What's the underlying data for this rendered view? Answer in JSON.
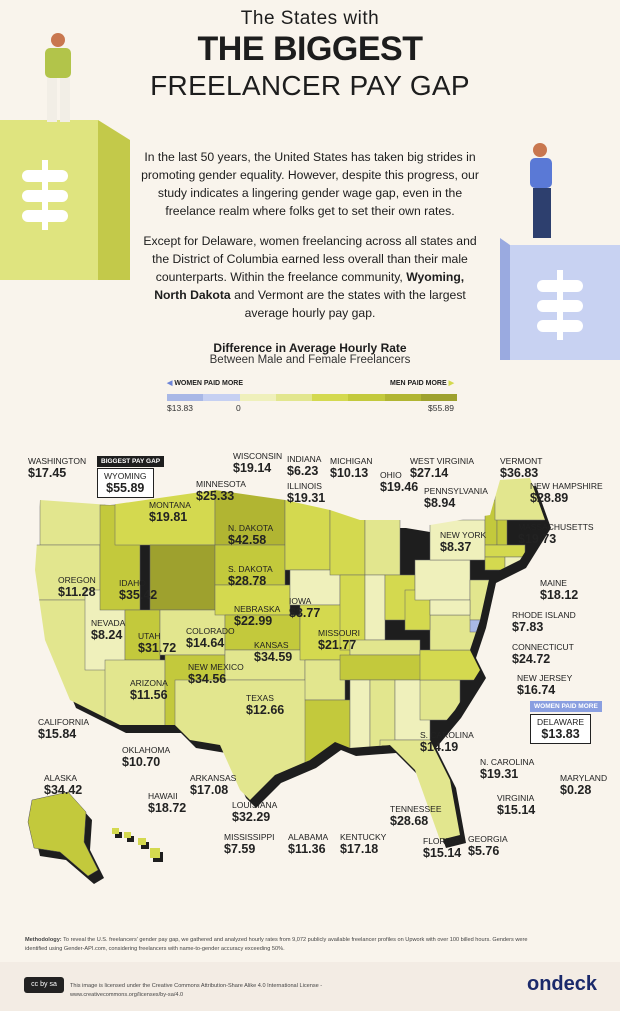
{
  "header": {
    "line1": "The States with",
    "line2": "THE BIGGEST",
    "line3": "FREELANCER PAY GAP"
  },
  "intro": {
    "p1": "In the last 50 years, the United States has taken big strides in promoting gender equality. However, despite this progress, our study indicates a lingering gender wage gap, even in the freelance realm where folks get to set their own rates.",
    "p2_before": "Except for Delaware, women freelancing across all states and the District of Columbia earned less overall than their male counterparts. Within the freelance community, ",
    "p2_bold": "Wyoming, North Dakota",
    "p2_after": " and Vermont are the states with the largest average hourly pay gap."
  },
  "legend": {
    "title": "Difference in Average Hourly Rate",
    "subtitle": "Between Male and Female Freelancers",
    "women_label": "WOMEN PAID MORE",
    "men_label": "MEN PAID MORE",
    "min": "$13.83",
    "zero": "0",
    "max": "$55.89",
    "women_colors": [
      "#a9b8e6",
      "#c6d0f2"
    ],
    "men_colors": [
      "#eff0bb",
      "#e2e68e",
      "#d4d94f",
      "#c3c93c",
      "#b1b532",
      "#9ea12e"
    ]
  },
  "badges": {
    "biggest": "BIGGEST PAY GAP",
    "women_more": "WOMEN PAID MORE"
  },
  "states": [
    {
      "name": "Washington",
      "value": "$17.45",
      "gap": 17.45
    },
    {
      "name": "Wyoming",
      "value": "$55.89",
      "gap": 55.89
    },
    {
      "name": "Minnesota",
      "value": "$25.33",
      "gap": 25.33
    },
    {
      "name": "Wisconsin",
      "value": "$19.14",
      "gap": 19.14
    },
    {
      "name": "Indiana",
      "value": "$6.23",
      "gap": 6.23
    },
    {
      "name": "Illinois",
      "value": "$19.31",
      "gap": 19.31
    },
    {
      "name": "Michigan",
      "value": "$10.13",
      "gap": 10.13
    },
    {
      "name": "Ohio",
      "value": "$19.46",
      "gap": 19.46
    },
    {
      "name": "West Virginia",
      "value": "$27.14",
      "gap": 27.14
    },
    {
      "name": "Pennsylvania",
      "value": "$8.94",
      "gap": 8.94
    },
    {
      "name": "Vermont",
      "value": "$36.83",
      "gap": 36.83
    },
    {
      "name": "New Hampshire",
      "value": "$28.89",
      "gap": 28.89
    },
    {
      "name": "Massachusetts",
      "value": "$19.73",
      "gap": 19.73
    },
    {
      "name": "New York",
      "value": "$8.37",
      "gap": 8.37
    },
    {
      "name": "Maine",
      "value": "$18.12",
      "gap": 18.12
    },
    {
      "name": "Rhode Island",
      "value": "$7.83",
      "gap": 7.83
    },
    {
      "name": "Connecticut",
      "value": "$24.72",
      "gap": 24.72
    },
    {
      "name": "New Jersey",
      "value": "$16.74",
      "gap": 16.74
    },
    {
      "name": "Delaware",
      "value": "$13.83",
      "gap": -13.83
    },
    {
      "name": "Maryland",
      "value": "$0.28",
      "gap": 0.28
    },
    {
      "name": "Virginia",
      "value": "$15.14",
      "gap": 15.14
    },
    {
      "name": "N. Carolina",
      "value": "$19.31",
      "gap": 19.31
    },
    {
      "name": "S. Carolina",
      "value": "$14.19",
      "gap": 14.19
    },
    {
      "name": "Georgia",
      "value": "$5.76",
      "gap": 5.76
    },
    {
      "name": "Florida",
      "value": "$15.14",
      "gap": 15.14
    },
    {
      "name": "Tennessee",
      "value": "$28.68",
      "gap": 28.68
    },
    {
      "name": "Kentucky",
      "value": "$17.18",
      "gap": 17.18
    },
    {
      "name": "Alabama",
      "value": "$11.36",
      "gap": 11.36
    },
    {
      "name": "Mississippi",
      "value": "$7.59",
      "gap": 7.59
    },
    {
      "name": "Louisiana",
      "value": "$32.29",
      "gap": 32.29
    },
    {
      "name": "Arkansas",
      "value": "$17.08",
      "gap": 17.08
    },
    {
      "name": "Oklahoma",
      "value": "$10.70",
      "gap": 10.7
    },
    {
      "name": "Hawaii",
      "value": "$18.72",
      "gap": 18.72
    },
    {
      "name": "Alaska",
      "value": "$34.42",
      "gap": 34.42
    },
    {
      "name": "California",
      "value": "$15.84",
      "gap": 15.84
    },
    {
      "name": "Texas",
      "value": "$12.66",
      "gap": 12.66
    },
    {
      "name": "Arizona",
      "value": "$11.56",
      "gap": 11.56
    },
    {
      "name": "New Mexico",
      "value": "$34.56",
      "gap": 34.56
    },
    {
      "name": "Utah",
      "value": "$31.72",
      "gap": 31.72
    },
    {
      "name": "Colorado",
      "value": "$14.64",
      "gap": 14.64
    },
    {
      "name": "Kansas",
      "value": "$34.59",
      "gap": 34.59
    },
    {
      "name": "Missouri",
      "value": "$21.77",
      "gap": 21.77
    },
    {
      "name": "Nevada",
      "value": "$8.24",
      "gap": 8.24
    },
    {
      "name": "Oregon",
      "value": "$11.28",
      "gap": 11.28
    },
    {
      "name": "Idaho",
      "value": "$35.42",
      "gap": 35.42
    },
    {
      "name": "Montana",
      "value": "$19.81",
      "gap": 19.81
    },
    {
      "name": "N. Dakota",
      "value": "$42.58",
      "gap": 42.58
    },
    {
      "name": "S. Dakota",
      "value": "$28.78",
      "gap": 28.78
    },
    {
      "name": "Nebraska",
      "value": "$22.99",
      "gap": 22.99
    },
    {
      "name": "Iowa",
      "value": "$3.77",
      "gap": 3.77
    }
  ],
  "methodology": {
    "label": "Methodology:",
    "text": " To reveal the U.S. freelancers' gender pay gap, we gathered and analyzed hourly rates from 9,072 publicly available freelancer profiles on Upwork with over 100 billed hours. Genders were identified using Gender-API.com, considering freelancers with name-to-gender accuracy exceeding 50%."
  },
  "footer": {
    "cc_badge": "cc by sa",
    "license": "This image is licensed under the Creative Commons Attribution-Share Alike 4.0 International License - www.creativecommons.org/licenses/by-sa/4.0",
    "brand": "ondeck"
  }
}
